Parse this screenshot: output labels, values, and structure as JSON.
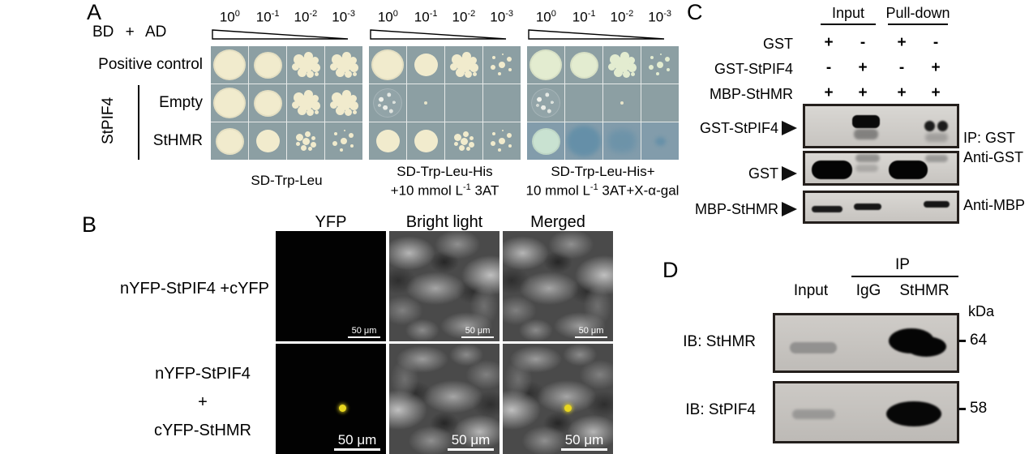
{
  "colors": {
    "agar": "#8c9fa3",
    "colony_cream": "#f1ebcd",
    "colony_green": "#e3ecd0",
    "colony_teal": "#c9e2d1",
    "xgal_blue": "#4e86a6",
    "yfp_dot": "#e8d61f"
  },
  "panelA": {
    "label": "A",
    "bd_ad_label": "BD + AD",
    "dilutions": [
      {
        "base": "10",
        "exp": "0"
      },
      {
        "base": "10",
        "exp": "-1"
      },
      {
        "base": "10",
        "exp": "-2"
      },
      {
        "base": "10",
        "exp": "-3"
      }
    ],
    "row_labels": [
      "Positive control",
      "Empty",
      "StHMR"
    ],
    "group_label": "StPIF4",
    "plates": [
      {
        "caption_line1": "SD-Trp-Leu",
        "grid": [
          [
            "xl",
            "lg",
            "cluster",
            "cluster"
          ],
          [
            "xl",
            "lg",
            "cluster",
            "cluster"
          ],
          [
            "lg",
            "md",
            "cluster-sm",
            "dots"
          ]
        ]
      },
      {
        "caption_line1": "SD-Trp-Leu-His",
        "caption_line2_pre": "+10 mmol L",
        "caption_line2_sup": "-1",
        "caption_line2_post": " 3AT",
        "grid": [
          [
            "xl",
            "md",
            "cluster",
            "dots"
          ],
          [
            "speckle",
            "tiny",
            "none",
            "none"
          ],
          [
            "md",
            "md",
            "cluster-sm",
            "dots"
          ]
        ]
      },
      {
        "caption_line1": "SD-Trp-Leu-His+",
        "caption_line2_pre": "10 mmol L",
        "caption_line2_sup": "-1",
        "caption_line2_post": " 3AT+X-α-gal",
        "grid": [
          [
            "xl green",
            "lg green",
            "cluster green",
            "dots green"
          ],
          [
            "speckle",
            "none",
            "tiny",
            "none"
          ],
          [
            "lg teal",
            "smear-blue",
            "patch-blue",
            "dot-blue"
          ]
        ]
      }
    ]
  },
  "panelB": {
    "label": "B",
    "col_headers": [
      "YFP",
      "Bright light",
      "Merged"
    ],
    "row1_label": "nYFP-StPIF4 +cYFP",
    "row2_label_lines": [
      "nYFP-StPIF4",
      "+",
      "cYFP-StHMR"
    ],
    "scale_bar": "50 μm"
  },
  "panelC": {
    "label": "C",
    "group_headers": [
      "Input",
      "Pull-down"
    ],
    "construct_rows": [
      {
        "label": "GST",
        "values": [
          "+",
          "-",
          "+",
          "-"
        ]
      },
      {
        "label": "GST-StPIF4",
        "values": [
          "-",
          "+",
          "-",
          "+"
        ]
      },
      {
        "label": "MBP-StHMR",
        "values": [
          "+",
          "+",
          "+",
          "+"
        ]
      }
    ],
    "blot_row_labels": [
      "GST-StPIF4",
      "GST",
      "MBP-StHMR"
    ],
    "right_labels": [
      "IP: GST",
      "Anti-GST",
      "Anti-MBP"
    ]
  },
  "panelD": {
    "label": "D",
    "ip_header": "IP",
    "col_headers": [
      "Input",
      "IgG",
      "StHMR"
    ],
    "kda_label": "kDa",
    "blots": [
      {
        "label": "IB: StHMR",
        "marker": "64"
      },
      {
        "label": "IB: StPIF4",
        "marker": "58"
      }
    ]
  }
}
